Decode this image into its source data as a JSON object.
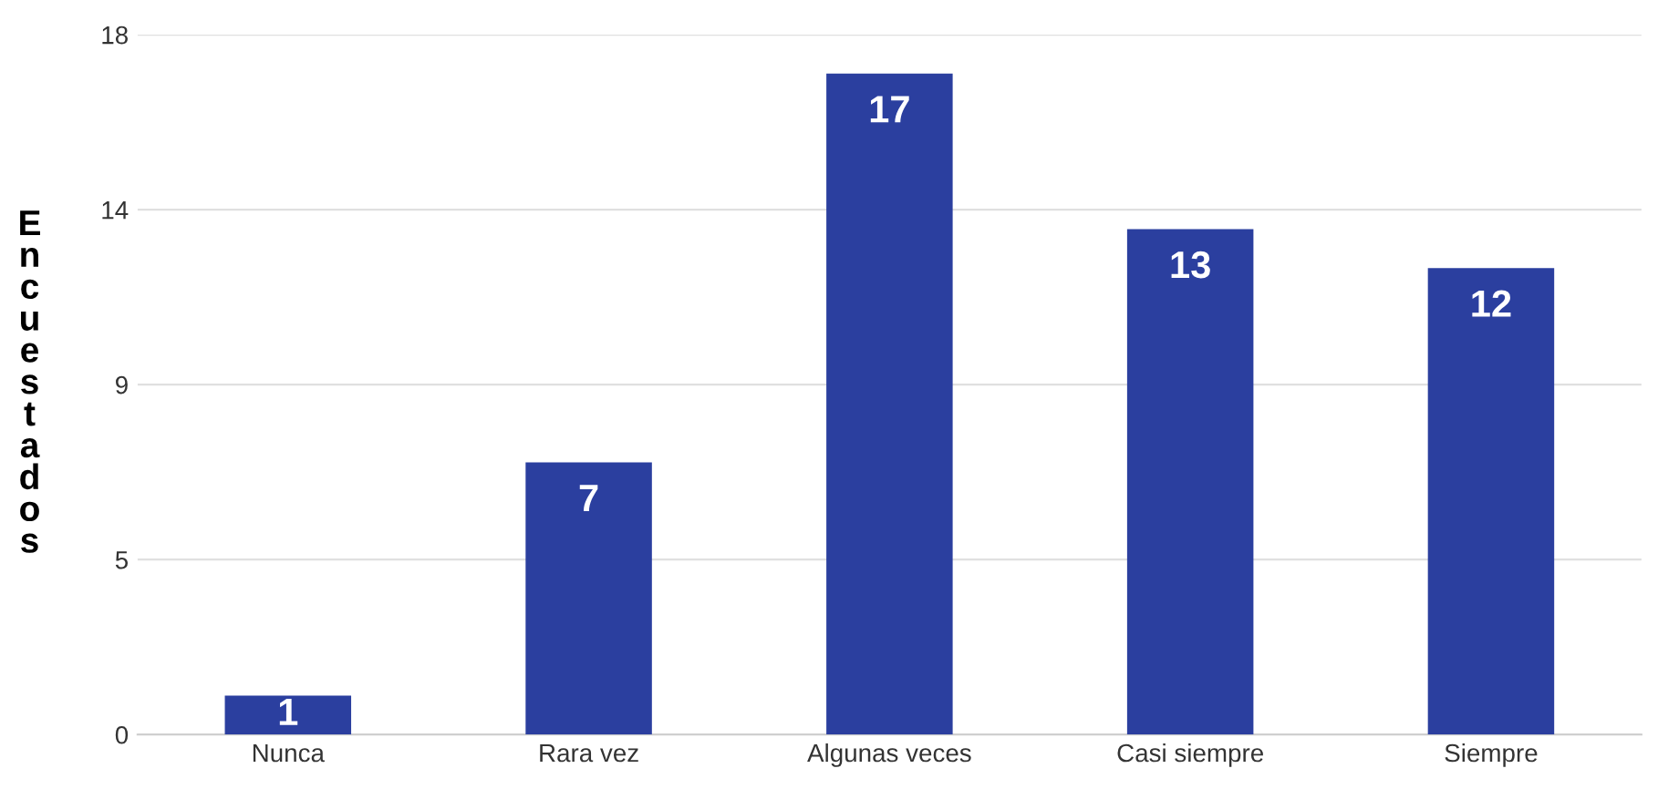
{
  "chart_data": {
    "type": "bar",
    "ylabel": "Encuestados",
    "categories": [
      "Nunca",
      "Rara vez",
      "Algunas veces",
      "Casi siempre",
      "Siempre"
    ],
    "values": [
      1,
      7,
      17,
      13,
      12
    ],
    "color": "#2b3f9f",
    "ylim": [
      0,
      18
    ],
    "yticks": [
      0,
      {
        "value": 4.5,
        "label": "5"
      },
      9,
      {
        "value": 13.5,
        "label": "14"
      },
      18
    ],
    "grid": "y",
    "data_labels": true,
    "legend": false
  }
}
